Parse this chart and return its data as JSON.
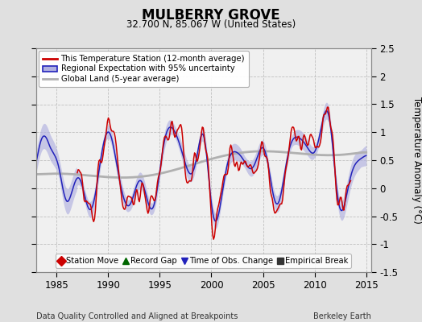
{
  "title": "MULBERRY GROVE",
  "subtitle": "32.700 N, 85.067 W (United States)",
  "ylabel": "Temperature Anomaly (°C)",
  "xlabel_left": "Data Quality Controlled and Aligned at Breakpoints",
  "xlabel_right": "Berkeley Earth",
  "xlim": [
    1983.0,
    2015.5
  ],
  "ylim": [
    -1.5,
    2.5
  ],
  "yticks": [
    -1.5,
    -1.0,
    -0.5,
    0.0,
    0.5,
    1.0,
    1.5,
    2.0,
    2.5
  ],
  "xticks": [
    1985,
    1990,
    1995,
    2000,
    2005,
    2010,
    2015
  ],
  "background_color": "#e0e0e0",
  "plot_bg_color": "#f0f0f0",
  "grid_color": "#c0c0c0",
  "red_color": "#cc0000",
  "blue_color": "#2222bb",
  "blue_fill_color": "#b0b0e0",
  "gray_color": "#b0b0b0",
  "legend_items": [
    "This Temperature Station (12-month average)",
    "Regional Expectation with 95% uncertainty",
    "Global Land (5-year average)"
  ],
  "bottom_legend": [
    {
      "marker": "D",
      "color": "#cc0000",
      "label": "Station Move"
    },
    {
      "marker": "^",
      "color": "#006600",
      "label": "Record Gap"
    },
    {
      "marker": "v",
      "color": "#2222bb",
      "label": "Time of Obs. Change"
    },
    {
      "marker": "s",
      "color": "#333333",
      "label": "Empirical Break"
    }
  ]
}
